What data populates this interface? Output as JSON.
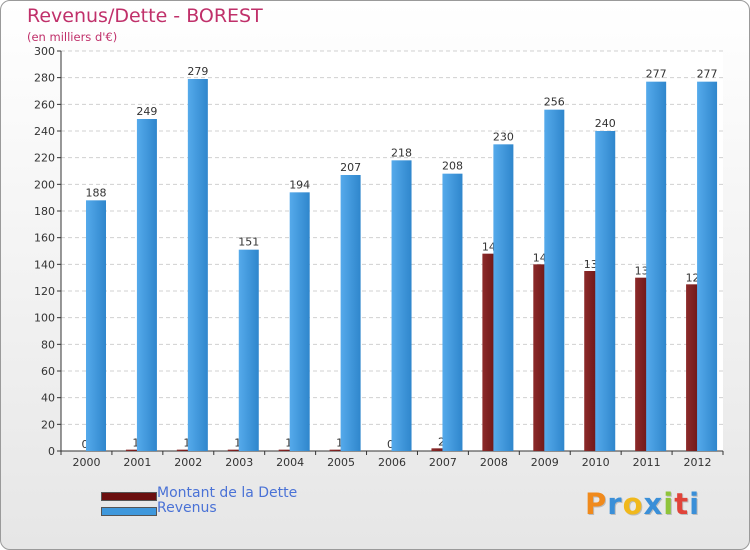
{
  "title": "Revenus/Dette - BOREST",
  "subtitle": "(en milliers d'€)",
  "colors": {
    "dette": "#7a1e1e",
    "revenus": "#3f98dc",
    "title": "#c0306a",
    "legend_text": "#4a72d6"
  },
  "legend": [
    {
      "label": "Montant de la Dette",
      "color": "#6b0f0f"
    },
    {
      "label": "Revenus",
      "color": "#3f98dc"
    }
  ],
  "brand": {
    "letters": [
      "P",
      "r",
      "o",
      "x",
      "i",
      "t",
      "i"
    ],
    "colors": [
      "#f08a1c",
      "#3a8fd8",
      "#f0b81c",
      "#3a8fd8",
      "#8fc43a",
      "#e0443a",
      "#3a8fd8"
    ]
  },
  "chart_data": {
    "type": "bar",
    "title": "Revenus/Dette - BOREST",
    "subtitle": "(en milliers d'€)",
    "xlabel": "",
    "ylabel": "",
    "ylim": [
      0,
      300
    ],
    "yticks": [
      0,
      20,
      40,
      60,
      80,
      100,
      120,
      140,
      160,
      180,
      200,
      220,
      240,
      260,
      280,
      300
    ],
    "grid": true,
    "legend_position": "bottom-left",
    "categories": [
      "2000",
      "2001",
      "2002",
      "2003",
      "2004",
      "2005",
      "2006",
      "2007",
      "2008",
      "2009",
      "2010",
      "2011",
      "2012"
    ],
    "series": [
      {
        "name": "Montant de la Dette",
        "values": [
          0,
          1,
          1,
          1,
          1,
          1,
          0,
          2,
          148,
          140,
          135,
          130,
          125
        ]
      },
      {
        "name": "Revenus",
        "values": [
          188,
          249,
          279,
          151,
          194,
          207,
          218,
          208,
          230,
          256,
          240,
          277,
          277
        ]
      }
    ]
  }
}
